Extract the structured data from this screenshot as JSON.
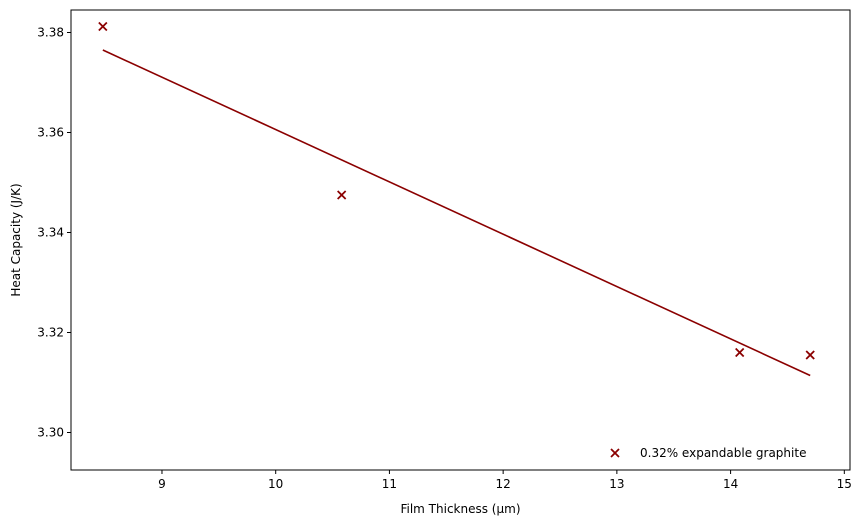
{
  "chart_data": {
    "type": "scatter",
    "title": "",
    "xlabel": "Film Thickness (µm)",
    "ylabel": "Heat Capacity (J/K)",
    "xlim": [
      8.2,
      15.05
    ],
    "ylim": [
      3.2925,
      3.3845
    ],
    "xticks": [
      9,
      10,
      11,
      12,
      13,
      14,
      15
    ],
    "xtick_labels": [
      "9",
      "10",
      "11",
      "12",
      "13",
      "14",
      "15"
    ],
    "yticks": [
      3.3,
      3.32,
      3.34,
      3.36,
      3.38
    ],
    "ytick_labels": [
      "3.30",
      "3.32",
      "3.34",
      "3.36",
      "3.38"
    ],
    "grid": false,
    "legend_position": "lower right",
    "series": [
      {
        "name": "0.32% expandable graphite",
        "kind": "scatter",
        "marker": "x",
        "color": "#8b0000",
        "x": [
          8.48,
          10.58,
          14.08,
          14.7
        ],
        "y": [
          3.3812,
          3.3475,
          3.316,
          3.3155
        ]
      },
      {
        "kind": "line",
        "color": "#8b0000",
        "x": [
          8.48,
          14.7
        ],
        "y": [
          3.3765,
          3.3114
        ]
      }
    ]
  }
}
